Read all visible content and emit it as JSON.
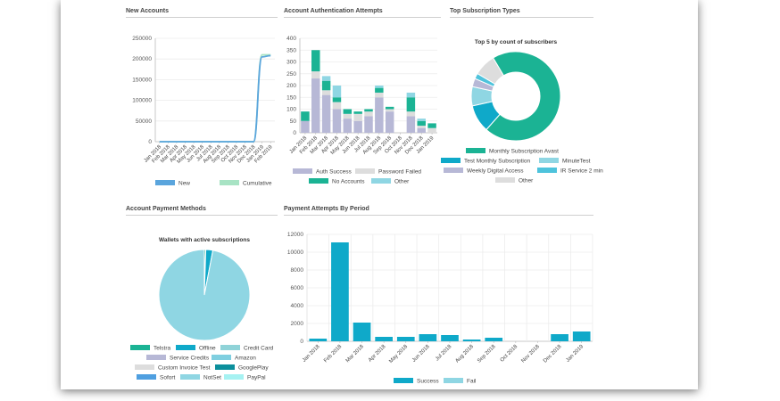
{
  "sections": {
    "new_accounts": "New Accounts",
    "auth_attempts": "Account Authentication Attempts",
    "subscription_types": "Top Subscription Types",
    "payment_methods": "Account Payment Methods",
    "payment_attempts": "Payment Attempts By Period"
  },
  "colors": {
    "teal": "#1bb394",
    "blue": "#0fa9c9",
    "light_blue": "#8fd6e3",
    "lavender": "#b7b8d6",
    "grey": "#dddddd",
    "line_blue": "#5aa5dd",
    "line_green": "#a8e3c4"
  },
  "chart_data": [
    {
      "id": "new_accounts",
      "type": "line",
      "categories": [
        "Jan 2018",
        "Feb 2018",
        "Mar 2018",
        "Apr 2018",
        "May 2018",
        "Jun 2018",
        "Jul 2018",
        "Aug 2018",
        "Sep 2018",
        "Oct 2018",
        "Nov 2018",
        "Dec 2018",
        "Jan 2019",
        "Feb 2019"
      ],
      "series": [
        {
          "name": "New",
          "values": [
            0,
            0,
            0,
            0,
            0,
            0,
            0,
            0,
            0,
            0,
            0,
            0,
            205000,
            208000
          ]
        },
        {
          "name": "Cumulative",
          "values": [
            0,
            0,
            0,
            0,
            0,
            0,
            0,
            0,
            0,
            0,
            0,
            0,
            210000,
            210000
          ]
        }
      ],
      "yticks": [
        "0",
        "50000",
        "100000",
        "150000",
        "200000",
        "250000"
      ],
      "ylim": [
        0,
        250000
      ]
    },
    {
      "id": "auth_attempts",
      "type": "bar",
      "stacked": true,
      "categories": [
        "Jan 2018",
        "Feb 2018",
        "Mar 2018",
        "Apr 2018",
        "May 2018",
        "Jun 2018",
        "Jul 2018",
        "Aug 2018",
        "Sep 2018",
        "Oct 2018",
        "Nov 2018",
        "Dec 2018",
        "Jan 2019"
      ],
      "series": [
        {
          "name": "Auth Success",
          "values": [
            50,
            230,
            160,
            100,
            60,
            50,
            70,
            150,
            90,
            0,
            70,
            20,
            0
          ]
        },
        {
          "name": "Password Failed",
          "values": [
            0,
            30,
            20,
            30,
            20,
            30,
            20,
            20,
            10,
            0,
            20,
            10,
            20
          ]
        },
        {
          "name": "No Accounts",
          "values": [
            40,
            90,
            40,
            20,
            20,
            10,
            10,
            20,
            10,
            0,
            60,
            20,
            20
          ]
        },
        {
          "name": "Other",
          "values": [
            0,
            0,
            20,
            50,
            0,
            0,
            0,
            10,
            0,
            0,
            20,
            10,
            0
          ]
        }
      ],
      "yticks": [
        "0",
        "50",
        "100",
        "150",
        "200",
        "250",
        "300",
        "350",
        "400"
      ],
      "ylim": [
        0,
        400
      ]
    },
    {
      "id": "subscription_types",
      "type": "pie",
      "title": "Top 5 by count of subscribers",
      "labels": [
        "Monthly Subscription Avast",
        "Test Monthly Subscription",
        "MinuteTest",
        "Weekly Digital Access",
        "IR Service 2 min",
        "Other"
      ],
      "values": [
        70,
        10,
        7,
        3,
        2,
        8
      ]
    },
    {
      "id": "payment_methods",
      "type": "pie",
      "title": "Wallets with active subscriptions",
      "labels": [
        "Telstra",
        "Offline",
        "Credit Card",
        "Service Credits",
        "Amazon",
        "Custom Invoice Test",
        "GooglePlay",
        "Sofort",
        "NotSet",
        "PayPal"
      ],
      "values": [
        0.5,
        2.5,
        0,
        0,
        0,
        0,
        0,
        0,
        97,
        0
      ]
    },
    {
      "id": "payment_attempts",
      "type": "bar",
      "categories": [
        "Jan 2018",
        "Feb 2018",
        "Mar 2018",
        "Apr 2018",
        "May 2018",
        "Jun 2018",
        "Jul 2018",
        "Aug 2018",
        "Sep 2018",
        "Oct 2018",
        "Nov 2018",
        "Dec 2018",
        "Jan 2019"
      ],
      "series": [
        {
          "name": "Success",
          "values": [
            300,
            11100,
            2100,
            500,
            500,
            800,
            700,
            200,
            400,
            0,
            0,
            800,
            1100
          ]
        },
        {
          "name": "Fail",
          "values": [
            0,
            0,
            0,
            0,
            0,
            0,
            0,
            0,
            0,
            0,
            0,
            0,
            0
          ]
        }
      ],
      "yticks": [
        "0",
        "2000",
        "4000",
        "6000",
        "8000",
        "10000",
        "12000"
      ],
      "ylim": [
        0,
        12000
      ]
    }
  ]
}
